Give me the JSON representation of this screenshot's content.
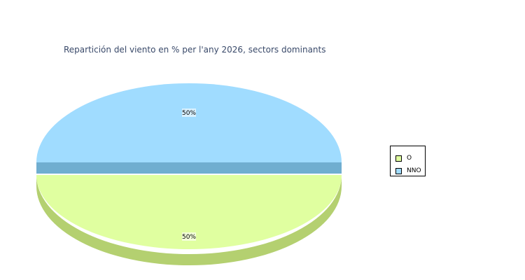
{
  "chart_data": {
    "type": "pie",
    "title": "Repartición del viento en % per l'any 2026, sectors dominants",
    "slices": [
      {
        "label": "O",
        "value": 50,
        "display": "50%",
        "color": "#e0ffa0",
        "side_color": "#b4d070"
      },
      {
        "label": "NNO",
        "value": 50,
        "display": "50%",
        "color": "#a0dcff",
        "side_color": "#70aed0"
      }
    ],
    "legend": {
      "position": "right",
      "items": [
        "O",
        "NNO"
      ]
    },
    "style": "3d"
  }
}
